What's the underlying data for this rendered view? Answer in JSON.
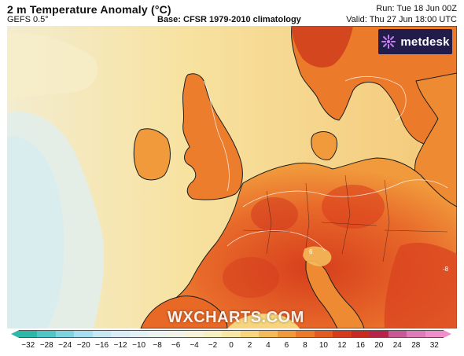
{
  "header": {
    "title": "2 m Temperature Anomaly (°C)",
    "model": "GEFS 0.5°",
    "base": "Base: CFSR 1979-2010 climatology",
    "run": "Run: Tue 18 Jun 00Z",
    "valid": "Valid: Thu 27 Jun 18:00 UTC"
  },
  "logo": {
    "text": "metdesk",
    "icon": "metdesk-logo-icon"
  },
  "watermark": "WXCHARTS.COM",
  "map": {
    "region": "Western and Central Europe",
    "contour_labels": [
      "6",
      "-8"
    ],
    "colors": {
      "sea_neutral": "#f6e3a0",
      "cool_anomaly": "#dbeef0",
      "warm_land": "#f29a3a",
      "hot_land": "#e0561e",
      "very_hot": "#c9301c",
      "coastline": "#1e1e1e"
    }
  },
  "colorbar": {
    "ticks": [
      "−32",
      "−28",
      "−24",
      "−20",
      "−16",
      "−12",
      "−10",
      "−8",
      "−6",
      "−4",
      "−2",
      "0",
      "2",
      "4",
      "6",
      "8",
      "10",
      "12",
      "16",
      "20",
      "24",
      "28",
      "32"
    ],
    "colors": [
      "#2db8a8",
      "#52c6c6",
      "#7dd3e0",
      "#a8dff0",
      "#c7e7f5",
      "#d8edf6",
      "#e3f1f5",
      "#ebf3f2",
      "#f2f3e8",
      "#f7f2d7",
      "#f9f0c2",
      "#f9e8a3",
      "#f7d57e",
      "#f4ba5a",
      "#f19a3c",
      "#eb7a2a",
      "#e25a1f",
      "#d53b1a",
      "#c62a22",
      "#b7244a",
      "#c75a96",
      "#dd7cb8",
      "#ee8fc9"
    ]
  }
}
